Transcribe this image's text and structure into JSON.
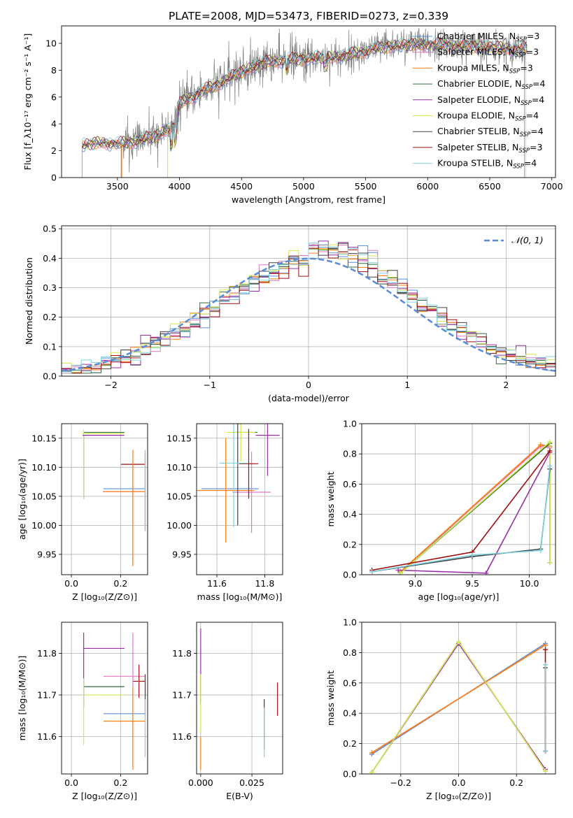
{
  "colors": {
    "Chabrier MILES": "#5b8ed6",
    "Salpeter MILES": "#e377c2",
    "Kroupa MILES": "#ff7f0e",
    "Chabrier ELODIE": "#2f6e3a",
    "Salpeter ELODIE": "#9a2ea8",
    "Kroupa ELODIE": "#d6e84a",
    "Chabrier STELIB": "#404040",
    "Salpeter STELIB": "#a00d0d",
    "Kroupa STELIB": "#7fd3e0"
  },
  "chart_data": [
    {
      "id": "spectrum",
      "type": "line",
      "title": "PLATE=2008, MJD=53473, FIBERID=0273, z=0.339",
      "xlabel": "wavelength [Angstrom, rest frame]",
      "ylabel": "Flux [f_λ10⁻¹⁷ erg cm⁻² s⁻¹ A⁻¹]",
      "xlim": [
        3050,
        7030
      ],
      "ylim": [
        0,
        11.3
      ],
      "xticks": [
        3500,
        4000,
        4500,
        5000,
        5500,
        6000,
        6500,
        7000
      ],
      "yticks": [
        0,
        2,
        4,
        6,
        8,
        10
      ],
      "grid": false,
      "legend_position": "top-right",
      "legend": [
        {
          "label": "Chabrier MILES, N",
          "sub": "SSP",
          "tail": "=3"
        },
        {
          "label": "Salpeter MILES, N",
          "sub": "SSP",
          "tail": "=3"
        },
        {
          "label": "Kroupa MILES, N",
          "sub": "SSP",
          "tail": "=3"
        },
        {
          "label": "Chabrier ELODIE, N",
          "sub": "SSP",
          "tail": "=4"
        },
        {
          "label": "Salpeter ELODIE, N",
          "sub": "SSP",
          "tail": "=4"
        },
        {
          "label": "Kroupa ELODIE, N",
          "sub": "SSP",
          "tail": "=4"
        },
        {
          "label": "Chabrier STELIB, N",
          "sub": "SSP",
          "tail": "=4"
        },
        {
          "label": "Salpeter STELIB, N",
          "sub": "SSP",
          "tail": "=3"
        },
        {
          "label": "Kroupa STELIB, N",
          "sub": "SSP",
          "tail": "=4"
        }
      ],
      "continuum_knots": [
        [
          3215,
          2.4
        ],
        [
          3350,
          2.6
        ],
        [
          3500,
          2.5
        ],
        [
          3700,
          2.8
        ],
        [
          3800,
          3.1
        ],
        [
          3900,
          3.5
        ],
        [
          3960,
          3.7
        ],
        [
          4000,
          5.5
        ],
        [
          4200,
          6.5
        ],
        [
          4300,
          6.9
        ],
        [
          4500,
          7.9
        ],
        [
          4700,
          8.6
        ],
        [
          4900,
          8.8
        ],
        [
          5100,
          8.9
        ],
        [
          5300,
          9.0
        ],
        [
          5500,
          9.4
        ],
        [
          5700,
          9.8
        ],
        [
          5900,
          9.9
        ],
        [
          6100,
          9.9
        ],
        [
          6300,
          9.8
        ],
        [
          6500,
          9.7
        ],
        [
          6700,
          9.6
        ],
        [
          6800,
          9.6
        ]
      ]
    },
    {
      "id": "residuals",
      "type": "line",
      "xlabel": "(data-model)/error",
      "ylabel": "Normed distribution",
      "xlim": [
        -2.5,
        2.5
      ],
      "ylim": [
        0,
        0.51
      ],
      "xticks": [
        -2,
        -1,
        0,
        1,
        2
      ],
      "yticks": [
        0.0,
        0.1,
        0.2,
        0.3,
        0.4,
        0.5
      ],
      "grid": true,
      "legend_position": "top-right",
      "normal_label": "𝒩(0, 1)",
      "normal_color": "#5b8ed6",
      "bin_width": 0.1
    },
    {
      "id": "age-vs-Z",
      "type": "scatter",
      "xlabel": "Z [log₁₀(Z/Z⊙)]",
      "ylabel": "age  [log₁₀(age/yr)]",
      "xlim": [
        -0.04,
        0.31
      ],
      "ylim": [
        9.915,
        10.175
      ],
      "xticks": [
        0.0,
        0.2
      ],
      "yticks": [
        9.95,
        10.0,
        10.05,
        10.1,
        10.15
      ],
      "grid": true,
      "points": [
        {
          "model": "Chabrier MILES",
          "x": 0.215,
          "y": 10.063,
          "xerr": 0.085,
          "yerr": 0
        },
        {
          "model": "Salpeter MILES",
          "x": 0.213,
          "y": 10.058,
          "xerr": 0.085,
          "yerr": 0
        },
        {
          "model": "Kroupa MILES",
          "x": 0.213,
          "y": 10.058,
          "xerr": 0.085,
          "yerr": 0
        },
        {
          "model": "Chabrier ELODIE",
          "x": 0.133,
          "y": 10.16,
          "xerr": 0.083,
          "yerr": 0
        },
        {
          "model": "Salpeter ELODIE",
          "x": 0.05,
          "y": 10.1,
          "xerr": 0.0,
          "yerr": 0.055
        },
        {
          "model": "Kroupa ELODIE",
          "x": 0.05,
          "y": 10.105,
          "xerr": 0.0,
          "yerr": 0.06
        },
        {
          "model": "Chabrier STELIB",
          "x": 0.3,
          "y": 10.058,
          "xerr": 0.0,
          "yerr": 0.067
        },
        {
          "model": "Salpeter STELIB",
          "x": 0.25,
          "y": 10.105,
          "xerr": 0.048,
          "yerr": 0.0
        },
        {
          "model": "Kroupa STELIB",
          "x": 0.3,
          "y": 10.06,
          "xerr": 0.0,
          "yerr": 0.07
        },
        {
          "model": "Salpeter MILES",
          "x": 0.25,
          "y": 10.02,
          "xerr": 0.0,
          "yerr": 0.09
        },
        {
          "model": "Kroupa MILES",
          "x": 0.25,
          "y": 10.03,
          "xerr": 0.0,
          "yerr": 0.1
        },
        {
          "model": "Salpeter ELODIE",
          "x": 0.13,
          "y": 10.155,
          "xerr": 0.085,
          "yerr": 0.0
        },
        {
          "model": "Kroupa ELODIE",
          "x": 0.13,
          "y": 10.158,
          "xerr": 0.085,
          "yerr": 0.0
        }
      ]
    },
    {
      "id": "age-vs-mass",
      "type": "scatter",
      "xlabel": "mass [log₁₀(M/M⊙)]",
      "ylabel": "",
      "xlim": [
        11.515,
        11.875
      ],
      "ylim": [
        9.915,
        10.175
      ],
      "xticks": [
        11.6,
        11.8
      ],
      "yticks": [
        9.95,
        10.0,
        10.05,
        10.1,
        10.15
      ],
      "grid": true,
      "points": [
        {
          "model": "Chabrier MILES",
          "x": 11.655,
          "y": 10.063,
          "xerr": 0.12,
          "yerr": 0
        },
        {
          "model": "Salpeter MILES",
          "x": 11.745,
          "y": 10.057,
          "xerr": 0.08,
          "yerr": 0.07
        },
        {
          "model": "Kroupa MILES",
          "x": 11.637,
          "y": 10.06,
          "xerr": 0.12,
          "yerr": 0.09
        },
        {
          "model": "Chabrier ELODIE",
          "x": 11.72,
          "y": 10.16,
          "xerr": 0.05,
          "yerr": 0.0
        },
        {
          "model": "Salpeter ELODIE",
          "x": 11.812,
          "y": 10.155,
          "xerr": 0.05,
          "yerr": 0.07
        },
        {
          "model": "Kroupa ELODIE",
          "x": 11.7,
          "y": 10.16,
          "xerr": 0.06,
          "yerr": 0.05
        },
        {
          "model": "Chabrier STELIB",
          "x": 11.687,
          "y": 10.09,
          "xerr": 0.0,
          "yerr": 0.09
        },
        {
          "model": "Salpeter STELIB",
          "x": 11.733,
          "y": 10.106,
          "xerr": 0.04,
          "yerr": 0.06
        },
        {
          "model": "Kroupa STELIB",
          "x": 11.67,
          "y": 10.107,
          "xerr": 0.06,
          "yerr": 0.11
        }
      ]
    },
    {
      "id": "mass-weight-vs-age",
      "type": "line",
      "xlabel": "age  [log₁₀(age/yr)]",
      "ylabel": "mass weight",
      "xlim": [
        8.53,
        10.23
      ],
      "ylim": [
        0,
        1.0
      ],
      "xticks": [
        9.0,
        9.5,
        10.0
      ],
      "yticks": [
        0.0,
        0.2,
        0.4,
        0.6,
        0.8,
        1.0
      ],
      "grid": true,
      "series": [
        {
          "model": "Chabrier MILES",
          "x": [
            8.87,
            10.1,
            10.18
          ],
          "y": [
            0.01,
            0.86,
            0.85
          ]
        },
        {
          "model": "Salpeter MILES",
          "x": [
            8.87,
            10.1,
            10.18
          ],
          "y": [
            0.02,
            0.85,
            0.84
          ]
        },
        {
          "model": "Kroupa MILES",
          "x": [
            8.87,
            10.1,
            10.18
          ],
          "y": [
            0.02,
            0.86,
            0.85
          ]
        },
        {
          "model": "Chabrier ELODIE",
          "x": [
            8.87,
            10.18,
            10.18
          ],
          "y": [
            0.01,
            0.87,
            0.08
          ]
        },
        {
          "model": "Salpeter ELODIE",
          "x": [
            8.85,
            9.62,
            10.18
          ],
          "y": [
            0.03,
            0.01,
            0.81
          ]
        },
        {
          "model": "Kroupa ELODIE",
          "x": [
            8.87,
            10.18,
            10.18
          ],
          "y": [
            0.01,
            0.88,
            0.08
          ]
        },
        {
          "model": "Chabrier STELIB",
          "x": [
            8.62,
            9.5,
            10.1,
            10.18
          ],
          "y": [
            0.02,
            0.12,
            0.17,
            0.7
          ]
        },
        {
          "model": "Salpeter STELIB",
          "x": [
            8.62,
            9.5,
            10.18
          ],
          "y": [
            0.03,
            0.15,
            0.82
          ]
        },
        {
          "model": "Kroupa STELIB",
          "x": [
            8.62,
            9.5,
            10.1,
            10.18
          ],
          "y": [
            0.02,
            0.13,
            0.16,
            0.72
          ]
        }
      ]
    },
    {
      "id": "mass-vs-Z",
      "type": "scatter",
      "xlabel": "Z [log₁₀(Z/Z⊙)]",
      "ylabel": "mass [log₁₀(M/M⊙)]",
      "xlim": [
        -0.04,
        0.31
      ],
      "ylim": [
        11.51,
        11.875
      ],
      "xticks": [
        0.0,
        0.2
      ],
      "yticks": [
        11.6,
        11.7,
        11.8
      ],
      "grid": true,
      "points": [
        {
          "model": "Chabrier MILES",
          "x": 0.215,
          "y": 11.655,
          "xerr": 0.085,
          "yerr": 0
        },
        {
          "model": "Salpeter MILES",
          "x": 0.215,
          "y": 11.745,
          "xerr": 0.085,
          "yerr": 0
        },
        {
          "model": "Kroupa MILES",
          "x": 0.215,
          "y": 11.637,
          "xerr": 0.085,
          "yerr": 0
        },
        {
          "model": "Chabrier ELODIE",
          "x": 0.133,
          "y": 11.72,
          "xerr": 0.083,
          "yerr": 0
        },
        {
          "model": "Salpeter ELODIE",
          "x": 0.133,
          "y": 11.812,
          "xerr": 0.083,
          "yerr": 0
        },
        {
          "model": "Kroupa ELODIE",
          "x": 0.133,
          "y": 11.7,
          "xerr": 0.083,
          "yerr": 0
        },
        {
          "model": "Chabrier STELIB",
          "x": 0.3,
          "y": 11.7,
          "xerr": 0.0,
          "yerr": 0.05
        },
        {
          "model": "Salpeter STELIB",
          "x": 0.275,
          "y": 11.733,
          "xerr": 0.025,
          "yerr": 0.04
        },
        {
          "model": "Kroupa STELIB",
          "x": 0.3,
          "y": 11.62,
          "xerr": 0.0,
          "yerr": 0.07
        },
        {
          "model": "Salpeter ELODIE",
          "x": 0.05,
          "y": 11.76,
          "xerr": 0.0,
          "yerr": 0.09
        },
        {
          "model": "Kroupa ELODIE",
          "x": 0.05,
          "y": 11.66,
          "xerr": 0.0,
          "yerr": 0.08
        },
        {
          "model": "Salpeter MILES",
          "x": 0.25,
          "y": 11.69,
          "xerr": 0.0,
          "yerr": 0.16
        },
        {
          "model": "Kroupa MILES",
          "x": 0.25,
          "y": 11.62,
          "xerr": 0.0,
          "yerr": 0.1
        }
      ]
    },
    {
      "id": "mass-vs-ebv",
      "type": "scatter",
      "xlabel": "E(B-V)",
      "ylabel": "",
      "xlim": [
        -0.002,
        0.04
      ],
      "ylim": [
        11.51,
        11.875
      ],
      "xticks": [
        0.0,
        0.025
      ],
      "yticks": [
        11.6,
        11.7,
        11.8
      ],
      "xticklabels": [
        "0.000",
        "0.025"
      ],
      "grid": true,
      "points": [
        {
          "model": "Salpeter ELODIE",
          "x": 0.0,
          "y": 11.77,
          "xerr": 0,
          "yerr": 0.09
        },
        {
          "model": "Kroupa ELODIE",
          "x": 0.0,
          "y": 11.68,
          "xerr": 0,
          "yerr": 0.07
        },
        {
          "model": "Kroupa MILES",
          "x": 0.0,
          "y": 11.56,
          "xerr": 0,
          "yerr": 0.04
        },
        {
          "model": "Chabrier STELIB",
          "x": 0.031,
          "y": 11.63,
          "xerr": 0,
          "yerr": 0.06
        },
        {
          "model": "Kroupa STELIB",
          "x": 0.031,
          "y": 11.61,
          "xerr": 0,
          "yerr": 0.06
        },
        {
          "model": "Salpeter STELIB",
          "x": 0.0375,
          "y": 11.69,
          "xerr": 0,
          "yerr": 0.04
        }
      ]
    },
    {
      "id": "mass-weight-vs-Z",
      "type": "line",
      "xlabel": "Z [log₁₀(Z/Z⊙)]",
      "ylabel": "mass weight",
      "xlim": [
        -0.335,
        0.335
      ],
      "ylim": [
        0,
        1.0
      ],
      "xticks": [
        -0.2,
        0.0,
        0.2
      ],
      "yticks": [
        0.0,
        0.2,
        0.4,
        0.6,
        0.8,
        1.0
      ],
      "grid": true,
      "series": [
        {
          "model": "Chabrier MILES",
          "x": [
            -0.3,
            0.3
          ],
          "y": [
            0.13,
            0.86
          ]
        },
        {
          "model": "Salpeter MILES",
          "x": [
            -0.3,
            0.3
          ],
          "y": [
            0.14,
            0.85
          ]
        },
        {
          "model": "Kroupa MILES",
          "x": [
            -0.3,
            0.3
          ],
          "y": [
            0.14,
            0.85
          ]
        },
        {
          "model": "Chabrier ELODIE",
          "x": [
            -0.3,
            0.0,
            0.3
          ],
          "y": [
            0.01,
            0.87,
            0.02
          ]
        },
        {
          "model": "Salpeter ELODIE",
          "x": [
            -0.3,
            0.0,
            0.3
          ],
          "y": [
            0.01,
            0.86,
            0.03
          ]
        },
        {
          "model": "Kroupa ELODIE",
          "x": [
            -0.3,
            0.0,
            0.3
          ],
          "y": [
            0.01,
            0.87,
            0.02
          ]
        },
        {
          "model": "Chabrier STELIB",
          "x": [
            0.3,
            0.3
          ],
          "y": [
            0.15,
            0.7
          ]
        },
        {
          "model": "Salpeter STELIB",
          "x": [
            0.3,
            0.3
          ],
          "y": [
            0.15,
            0.82
          ]
        },
        {
          "model": "Kroupa STELIB",
          "x": [
            0.3,
            0.3
          ],
          "y": [
            0.15,
            0.72
          ]
        }
      ]
    }
  ]
}
